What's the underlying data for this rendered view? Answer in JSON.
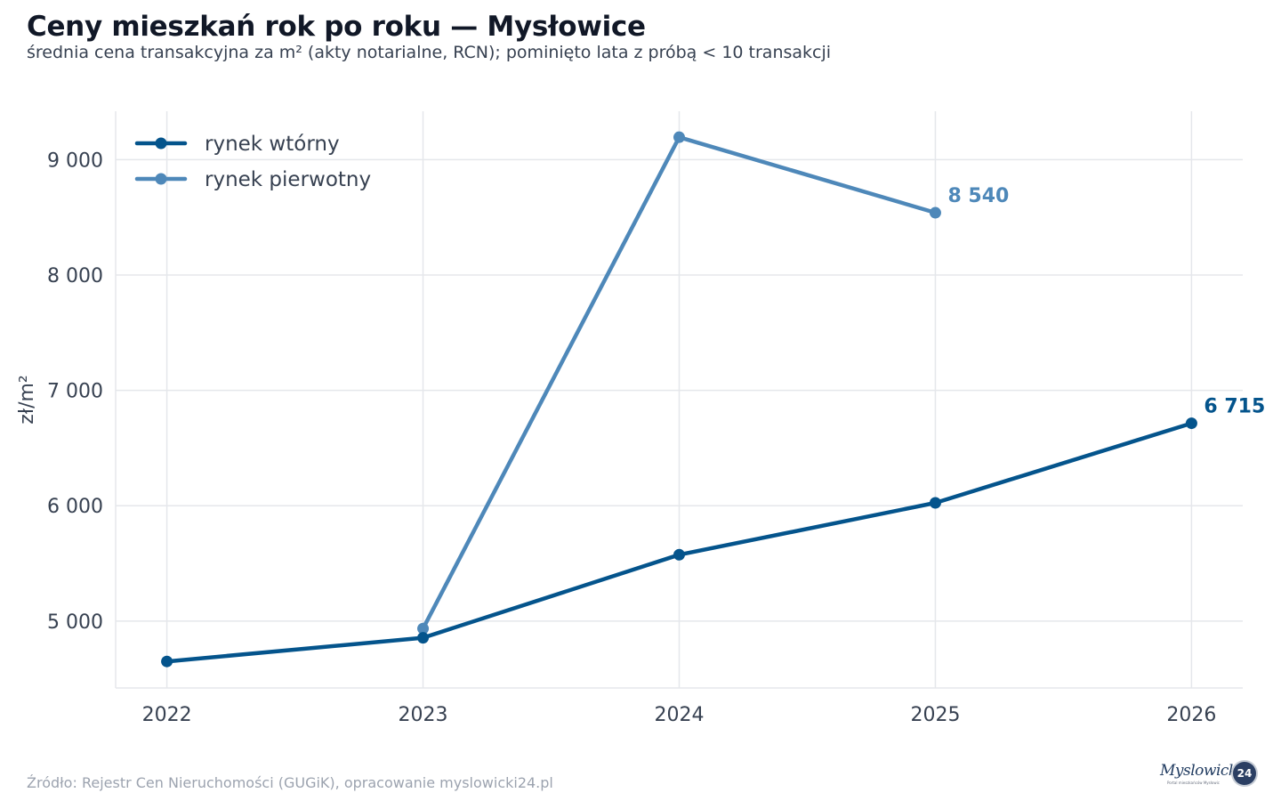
{
  "header": {
    "title": "Ceny mieszkań rok po roku — Mysłowice",
    "subtitle": "średnia cena transakcyjna za m² (akty notarialne, RCN); pominięto lata z próbą < 10 transakcji"
  },
  "footer": {
    "source": "Źródło: Rejestr Cen Nieruchomości (GUGiK), opracowanie myslowicki24.pl"
  },
  "logo": {
    "text": "Myslowicki",
    "badge": "24",
    "tagline": "Portal mieszkańców Mysłowic"
  },
  "chart_data": {
    "type": "line",
    "title": "Ceny mieszkań rok po roku — Mysłowice",
    "subtitle": "średnia cena transakcyjna za m² (akty notarialne, RCN); pominięto lata z próbą < 10 transakcji",
    "xlabel": "",
    "ylabel": "zł/m²",
    "x": [
      2022,
      2023,
      2024,
      2025,
      2026
    ],
    "xlim": [
      2021.8,
      2026.2
    ],
    "ylim": [
      4420,
      9420
    ],
    "yticks": [
      5000,
      6000,
      7000,
      8000,
      9000
    ],
    "ytick_labels": [
      "5 000",
      "6 000",
      "7 000",
      "8 000",
      "9 000"
    ],
    "xtick_labels": [
      "2022",
      "2023",
      "2024",
      "2025",
      "2026"
    ],
    "grid": true,
    "legend_position": "top-left",
    "series": [
      {
        "name": "rynek wtórny",
        "color": "#04548c",
        "x": [
          2022,
          2023,
          2024,
          2025,
          2026
        ],
        "values": [
          4650,
          4855,
          5575,
          6025,
          6715
        ],
        "end_label": "6 715"
      },
      {
        "name": "rynek pierwotny",
        "color": "#4e88b9",
        "x": [
          2023,
          2024,
          2025
        ],
        "values": [
          4935,
          9195,
          8540
        ],
        "end_label": "8 540"
      }
    ]
  }
}
